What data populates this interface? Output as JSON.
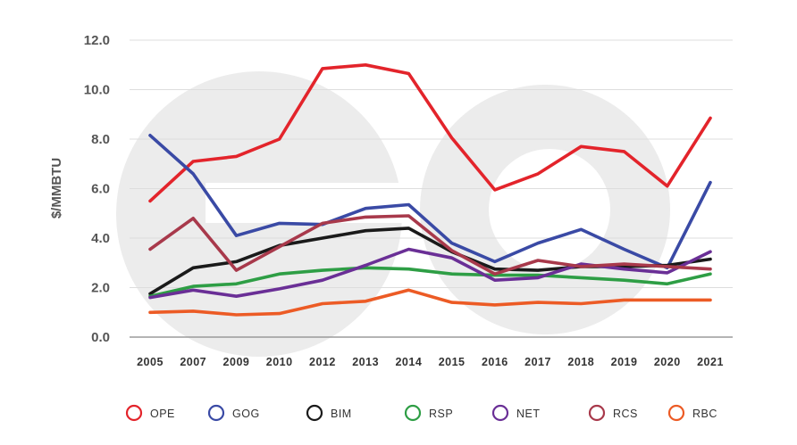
{
  "chart_data": {
    "type": "line",
    "ylabel": "$/MMBTU",
    "xlabel": "",
    "ylim": [
      0,
      12
    ],
    "yticks": [
      "0.0",
      "2.0",
      "4.0",
      "6.0",
      "8.0",
      "10.0",
      "12.0"
    ],
    "categories": [
      "2005",
      "2007",
      "2009",
      "2010",
      "2012",
      "2013",
      "2014",
      "2015",
      "2016",
      "2017",
      "2018",
      "2019",
      "2020",
      "2021"
    ],
    "grid": "horizontal",
    "legend_position": "bottom",
    "series": [
      {
        "name": "OPE",
        "color": "#e3242b",
        "values": [
          5.5,
          7.1,
          7.3,
          8.0,
          10.85,
          11.0,
          10.65,
          8.05,
          5.95,
          6.6,
          7.7,
          7.5,
          6.1,
          8.85
        ]
      },
      {
        "name": "GOG",
        "color": "#3a4aa5",
        "values": [
          8.15,
          6.6,
          4.1,
          4.6,
          4.55,
          5.2,
          5.35,
          3.8,
          3.05,
          3.8,
          4.35,
          3.55,
          2.8,
          6.25
        ]
      },
      {
        "name": "BIM",
        "color": "#1a1a1a",
        "values": [
          1.75,
          2.8,
          3.05,
          3.7,
          4.0,
          4.3,
          4.4,
          3.45,
          2.75,
          2.7,
          2.85,
          2.85,
          2.9,
          3.15
        ]
      },
      {
        "name": "RSP",
        "color": "#2e9e45",
        "values": [
          1.65,
          2.05,
          2.15,
          2.55,
          2.7,
          2.8,
          2.75,
          2.55,
          2.5,
          2.5,
          2.4,
          2.3,
          2.15,
          2.55
        ]
      },
      {
        "name": "NET",
        "color": "#6a2f96",
        "values": [
          1.6,
          1.9,
          1.65,
          1.95,
          2.3,
          2.9,
          3.55,
          3.2,
          2.3,
          2.4,
          2.95,
          2.75,
          2.6,
          3.45
        ]
      },
      {
        "name": "RCS",
        "color": "#a8394b",
        "values": [
          3.55,
          4.8,
          2.7,
          3.65,
          4.6,
          4.85,
          4.9,
          3.5,
          2.55,
          3.1,
          2.85,
          2.95,
          2.85,
          2.75
        ]
      },
      {
        "name": "RBC",
        "color": "#ec5b25",
        "values": [
          1.0,
          1.05,
          0.9,
          0.95,
          1.35,
          1.45,
          1.9,
          1.4,
          1.3,
          1.4,
          1.35,
          1.5,
          1.5,
          1.5
        ]
      }
    ]
  }
}
